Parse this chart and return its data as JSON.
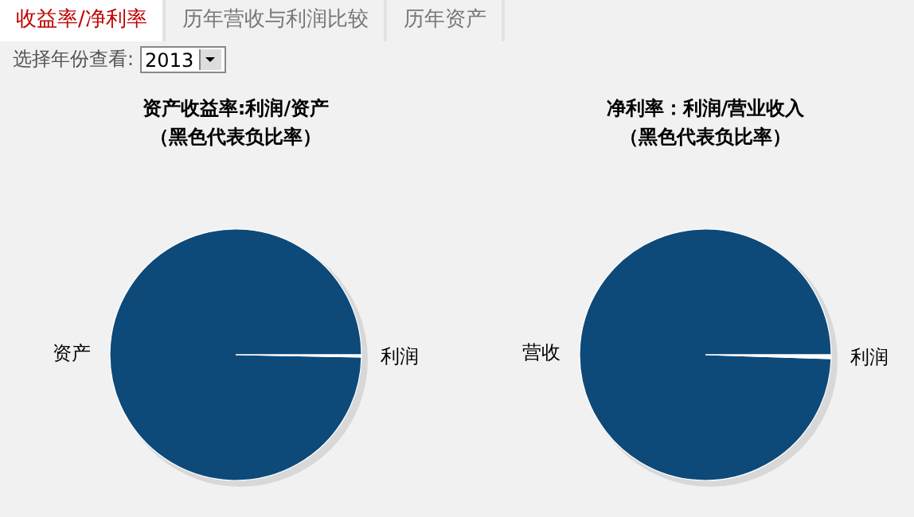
{
  "chart_data": [
    {
      "type": "other",
      "annotations": [
        "收益率/净利率",
        "历年营收与利润比较",
        "历年资产",
        "选择年份查看:",
        "2013"
      ]
    },
    {
      "type": "pie",
      "title": "资产收益率:利润/资产",
      "subtitle": "（黑色代表负比率）",
      "categories": [
        "利润",
        "资产"
      ],
      "values": [
        0.3,
        99.7
      ],
      "colors": [
        "#ffffff",
        "#0d4a7a"
      ]
    },
    {
      "type": "pie",
      "title": "净利率：利润/营业收入",
      "subtitle": "（黑色代表负比率）",
      "categories": [
        "利润",
        "营收"
      ],
      "values": [
        0.5,
        99.5
      ],
      "colors": [
        "#ffffff",
        "#0d4a7a"
      ]
    }
  ]
}
